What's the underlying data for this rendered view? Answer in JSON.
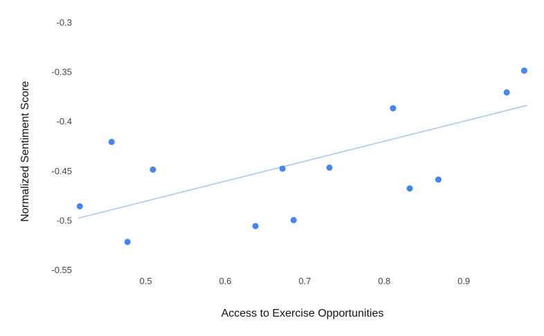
{
  "chart_data": {
    "type": "scatter",
    "title": "",
    "xlabel": "Access to Exercise Opportunities",
    "ylabel": "Normalized Sentiment Score",
    "xlim": [
      0.415,
      0.98
    ],
    "ylim": [
      -0.55,
      -0.3
    ],
    "x_ticks": [
      0.5,
      0.6,
      0.7,
      0.8,
      0.9
    ],
    "x_tick_labels": [
      "0.5",
      "0.6",
      "0.7",
      "0.8",
      "0.9"
    ],
    "y_ticks": [
      -0.3,
      -0.35,
      -0.4,
      -0.45,
      -0.5,
      -0.55
    ],
    "y_tick_labels": [
      "-0.3",
      "-0.35",
      "-0.4",
      "-0.45",
      "-0.5",
      "-0.55"
    ],
    "grid": false,
    "legend": "none",
    "colors": {
      "points": "#4285f4",
      "trendline": "#a9c9f5"
    },
    "series": [
      {
        "x": [
          0.417,
          0.457,
          0.477,
          0.509,
          0.638,
          0.672,
          0.686,
          0.731,
          0.811,
          0.832,
          0.868,
          0.954,
          0.976
        ],
        "y": [
          -0.486,
          -0.421,
          -0.522,
          -0.449,
          -0.506,
          -0.448,
          -0.5,
          -0.447,
          -0.387,
          -0.468,
          -0.459,
          -0.371,
          -0.349
        ]
      }
    ],
    "trendline": {
      "type": "linear",
      "x": [
        0.415,
        0.98
      ],
      "y": [
        -0.498,
        -0.384
      ]
    }
  }
}
